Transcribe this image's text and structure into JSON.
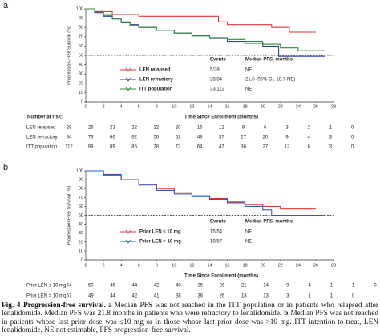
{
  "chart_data": [
    {
      "type": "line",
      "panel_label": "a",
      "step": true,
      "ylabel": "Progression-Free Survival (%)",
      "xlabel": "Time Since Enrollment (months)",
      "xlim": [
        0,
        28
      ],
      "xticks": [
        0,
        2,
        4,
        6,
        8,
        10,
        12,
        14,
        16,
        18,
        20,
        22,
        24,
        26,
        28
      ],
      "ylim": [
        0,
        100
      ],
      "yticks": [
        0,
        10,
        20,
        30,
        40,
        50,
        60,
        70,
        80,
        90,
        100
      ],
      "hline": 50,
      "legend_header": [
        "Events",
        "Median PFS, months"
      ],
      "series": [
        {
          "name": "LEN relapsed",
          "color": "#e2343c",
          "events": "5/28",
          "median": "NE",
          "x": [
            0,
            1,
            3,
            6,
            15,
            16,
            21,
            23,
            26
          ],
          "values": [
            100,
            97,
            94,
            92,
            86,
            83,
            80,
            75,
            75
          ]
        },
        {
          "name": "LEN refractory",
          "color": "#2a4595",
          "events": "28/84",
          "median": "21.8 (95% CI, 18.7-NE)",
          "x": [
            0,
            1,
            2,
            3,
            4,
            5,
            6,
            8,
            10,
            12,
            14,
            16,
            18,
            20,
            21.8,
            27
          ],
          "values": [
            100,
            96,
            92,
            89,
            86,
            83,
            80,
            77,
            74,
            71,
            68,
            65,
            63,
            60,
            49,
            49
          ]
        },
        {
          "name": "ITT population",
          "color": "#2e8b3c",
          "events": "33/112",
          "median": "NE",
          "x": [
            0,
            1,
            2,
            3,
            4,
            5,
            6,
            8,
            10,
            12,
            14,
            16,
            18,
            20,
            22,
            24,
            27
          ],
          "values": [
            100,
            97,
            93,
            89,
            85,
            82,
            80,
            77,
            74,
            71,
            69,
            67,
            65,
            62,
            58,
            55,
            55
          ]
        }
      ],
      "risk_table": {
        "title": "Number at risk:",
        "rows": [
          {
            "name": "LEN relapsed",
            "values": [
              28,
              26,
              23,
              22,
              22,
              20,
              16,
              12,
              9,
              6,
              3,
              2,
              1,
              0
            ]
          },
          {
            "name": "LEN refractory",
            "values": [
              84,
              73,
              66,
              62,
              56,
              52,
              48,
              37,
              27,
              20,
              9,
              4,
              3,
              0
            ]
          },
          {
            "name": "ITT population",
            "values": [
              112,
              99,
              89,
              85,
              78,
              72,
              64,
              47,
              36,
              27,
              12,
              6,
              3,
              0
            ]
          }
        ]
      }
    },
    {
      "type": "line",
      "panel_label": "b",
      "step": true,
      "ylabel": "Progression-Free Survival (%)",
      "xlabel": "Time Since Enrollment (months)",
      "xlim": [
        0,
        28
      ],
      "xticks": [
        0,
        2,
        4,
        6,
        8,
        10,
        12,
        14,
        16,
        18,
        20,
        22,
        24,
        26,
        28
      ],
      "ylim": [
        0,
        100
      ],
      "yticks": [
        0,
        10,
        20,
        30,
        40,
        50,
        60,
        70,
        80,
        90,
        100
      ],
      "hline": 50,
      "legend_header": [
        "Events",
        "Median PFS, months"
      ],
      "series": [
        {
          "name": "Prior LEN ≤ 10 mg",
          "color": "#e2343c",
          "events": "15/54",
          "median": "NE",
          "x": [
            0,
            2,
            4,
            6,
            8,
            10,
            12,
            14,
            16,
            18,
            20,
            22,
            26
          ],
          "values": [
            100,
            95,
            90,
            85,
            80,
            76,
            72,
            69,
            65,
            62,
            60,
            57,
            57
          ]
        },
        {
          "name": "Prior LEN > 10 mg",
          "color": "#3556c4",
          "events": "18/57",
          "median": "NE",
          "x": [
            0,
            2,
            4,
            6,
            8,
            10,
            12,
            14,
            16,
            18,
            20,
            21,
            27
          ],
          "values": [
            100,
            96,
            90,
            84,
            78,
            74,
            71,
            68,
            64,
            60,
            56,
            50,
            50
          ]
        }
      ],
      "risk_table": {
        "rows": [
          {
            "name": "Prior LEN ≤ 10 mg",
            "values": [
              54,
              50,
              46,
              44,
              42,
              40,
              35,
              26,
              21,
              14,
              9,
              4,
              1,
              1,
              0
            ]
          },
          {
            "name": "Prior LEN > 10 mg",
            "values": [
              57,
              49,
              44,
              42,
              41,
              38,
              36,
              26,
              18,
              13,
              3,
              1,
              1,
              0
            ]
          }
        ]
      }
    }
  ],
  "caption": [
    {
      "text": "Fig. 4 Progression-free survival.",
      "bold": true
    },
    {
      "text": "a",
      "bold": true
    },
    {
      "text": "Median PFS was not reached in the ITT population or in patients who relapsed after lenalidomide. Median PFS was 21.8 months in patients who were refractory to lenalidomide."
    },
    {
      "text": "b",
      "bold": true
    },
    {
      "text": "Median PFS was not reached in patients whose last prior dose was ≤10 mg or in those whose last prior dose was >10 mg. ITT intention-to-treat, LEN lenalidomide, NE not estimable, PFS progression-free survival."
    }
  ]
}
